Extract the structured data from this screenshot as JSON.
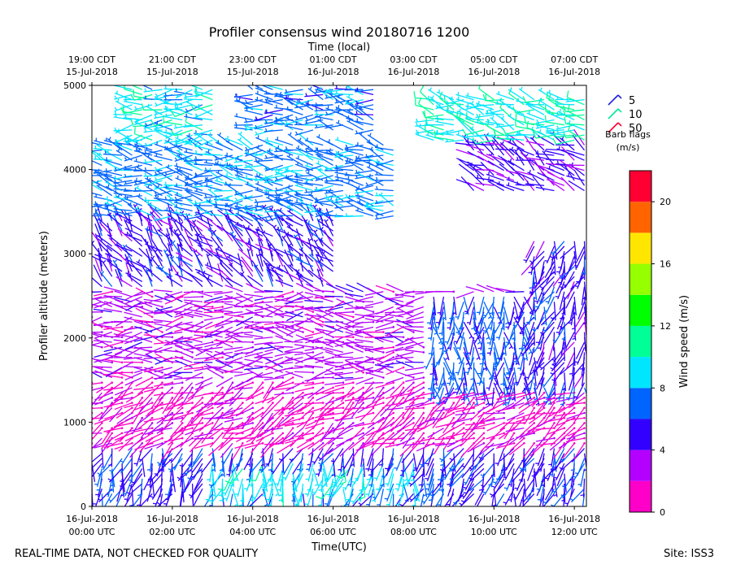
{
  "chart_data": {
    "type": "wind_barb_profile",
    "title": "Profiler consensus wind 20180716 1200",
    "top_axis_label": "Time (local)",
    "xlabel": "Time(UTC)",
    "ylabel": "Profiler altitude (meters)",
    "xlim_hours_utc": [
      0,
      12.3
    ],
    "ylim": [
      0,
      5000
    ],
    "y_ticks": [
      0,
      1000,
      2000,
      3000,
      4000,
      5000
    ],
    "bottom_ticks": [
      {
        "hour": 0,
        "line1": "16-Jul-2018",
        "line2": "00:00 UTC"
      },
      {
        "hour": 2,
        "line1": "16-Jul-2018",
        "line2": "02:00 UTC"
      },
      {
        "hour": 4,
        "line1": "16-Jul-2018",
        "line2": "04:00 UTC"
      },
      {
        "hour": 6,
        "line1": "16-Jul-2018",
        "line2": "06:00 UTC"
      },
      {
        "hour": 8,
        "line1": "16-Jul-2018",
        "line2": "08:00 UTC"
      },
      {
        "hour": 10,
        "line1": "16-Jul-2018",
        "line2": "10:00 UTC"
      },
      {
        "hour": 12,
        "line1": "16-Jul-2018",
        "line2": "12:00 UTC"
      }
    ],
    "top_ticks": [
      {
        "hour": 0,
        "line1": "19:00 CDT",
        "line2": "15-Jul-2018"
      },
      {
        "hour": 2,
        "line1": "21:00 CDT",
        "line2": "15-Jul-2018"
      },
      {
        "hour": 4,
        "line1": "23:00 CDT",
        "line2": "15-Jul-2018"
      },
      {
        "hour": 6,
        "line1": "01:00 CDT",
        "line2": "16-Jul-2018"
      },
      {
        "hour": 8,
        "line1": "03:00 CDT",
        "line2": "16-Jul-2018"
      },
      {
        "hour": 10,
        "line1": "05:00 CDT",
        "line2": "16-Jul-2018"
      },
      {
        "hour": 12,
        "line1": "07:00 CDT",
        "line2": "16-Jul-2018"
      }
    ],
    "barb_legend": {
      "entries": [
        {
          "label": "5",
          "color": "#1e1ee0"
        },
        {
          "label": "10",
          "color": "#00e896"
        },
        {
          "label": "50",
          "color": "#ff0030"
        }
      ],
      "caption_line1": "Barb flags",
      "caption_line2": "(m/s)"
    },
    "colorbar": {
      "label": "Wind speed (m/s)",
      "range": [
        0,
        22
      ],
      "bins": [
        {
          "from": 0,
          "to": 2,
          "color": "#ff00c8"
        },
        {
          "from": 2,
          "to": 4,
          "color": "#b400ff"
        },
        {
          "from": 4,
          "to": 6,
          "color": "#3200ff"
        },
        {
          "from": 6,
          "to": 8,
          "color": "#0064ff"
        },
        {
          "from": 8,
          "to": 10,
          "color": "#00e6ff"
        },
        {
          "from": 10,
          "to": 12,
          "color": "#00ff96"
        },
        {
          "from": 12,
          "to": 14,
          "color": "#00ff00"
        },
        {
          "from": 14,
          "to": 16,
          "color": "#96ff00"
        },
        {
          "from": 16,
          "to": 18,
          "color": "#ffe600"
        },
        {
          "from": 18,
          "to": 20,
          "color": "#ff6400"
        },
        {
          "from": 20,
          "to": 22,
          "color": "#ff0032"
        }
      ],
      "ticks": [
        0,
        4,
        8,
        12,
        16,
        20
      ]
    },
    "profile_times_hours": [
      0,
      0.25,
      0.5,
      0.75,
      1,
      1.25,
      1.5,
      1.75,
      2,
      2.25,
      2.5,
      2.75,
      3,
      3.25,
      3.5,
      3.75,
      4,
      4.25,
      4.5,
      4.75,
      5,
      5.25,
      5.5,
      5.75,
      6,
      6.25,
      6.5,
      6.75,
      7,
      7.25,
      7.5,
      7.75,
      8,
      8.25,
      8.5,
      8.75,
      9,
      9.25,
      9.5,
      9.75,
      10,
      10.25,
      10.5,
      10.75,
      11,
      11.25,
      11.5,
      11.75,
      12,
      12.25
    ],
    "altitude_step_m": 60,
    "wind_layers": [
      {
        "t0": 0,
        "t1": 12.3,
        "z0": 150,
        "z1": 750,
        "speed": 5.5,
        "dir": 200
      },
      {
        "t0": 3.0,
        "t1": 8.0,
        "z0": 200,
        "z1": 550,
        "speed": 9.0,
        "dir": 190
      },
      {
        "t0": 0,
        "t1": 12.3,
        "z0": 750,
        "z1": 1500,
        "speed": 1.5,
        "dir": 240
      },
      {
        "t0": 0,
        "t1": 12.3,
        "z0": 1500,
        "z1": 2600,
        "speed": 3.0,
        "dir": 270
      },
      {
        "t0": 8.5,
        "t1": 12.3,
        "z0": 1400,
        "z1": 2500,
        "speed": 6.5,
        "dir": 180
      },
      {
        "t0": 0,
        "t1": 6.0,
        "z0": 2600,
        "z1": 3400,
        "speed": 5.0,
        "dir": 320
      },
      {
        "t0": 11.0,
        "t1": 12.3,
        "z0": 1500,
        "z1": 3200,
        "speed": 5.0,
        "dir": 200
      },
      {
        "t0": 0,
        "t1": 7.5,
        "z0": 3400,
        "z1": 4300,
        "speed": 7.5,
        "dir": 280
      },
      {
        "t0": 9.5,
        "t1": 12.3,
        "z0": 3700,
        "z1": 4300,
        "speed": 4.5,
        "dir": 300
      },
      {
        "t0": 0.8,
        "t1": 3.2,
        "z0": 4300,
        "z1": 5000,
        "speed": 9.0,
        "dir": 270
      },
      {
        "t0": 4.0,
        "t1": 7.2,
        "z0": 4450,
        "z1": 5000,
        "speed": 7.0,
        "dir": 280
      },
      {
        "t0": 8.5,
        "t1": 12.3,
        "z0": 4300,
        "z1": 4850,
        "speed": 9.5,
        "dir": 285
      }
    ]
  },
  "footer": {
    "left": "REAL-TIME DATA, NOT CHECKED FOR QUALITY",
    "right": "Site: ISS3"
  }
}
